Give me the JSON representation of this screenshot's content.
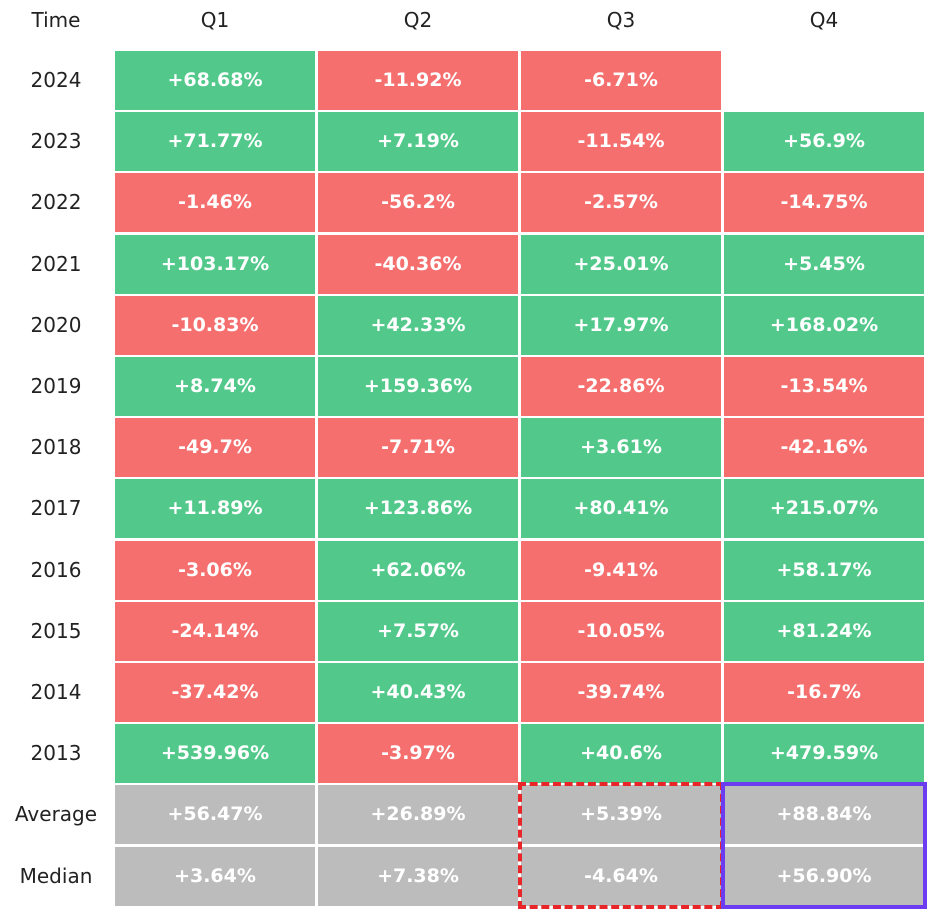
{
  "chart_data": {
    "type": "table",
    "corner_header": "Time",
    "columns": [
      "Q1",
      "Q2",
      "Q3",
      "Q4"
    ],
    "rows": [
      {
        "label": "2024",
        "values": [
          "+68.68%",
          "-11.92%",
          "-6.71%",
          ""
        ]
      },
      {
        "label": "2023",
        "values": [
          "+71.77%",
          "+7.19%",
          "-11.54%",
          "+56.9%"
        ]
      },
      {
        "label": "2022",
        "values": [
          "-1.46%",
          "-56.2%",
          "-2.57%",
          "-14.75%"
        ]
      },
      {
        "label": "2021",
        "values": [
          "+103.17%",
          "-40.36%",
          "+25.01%",
          "+5.45%"
        ]
      },
      {
        "label": "2020",
        "values": [
          "-10.83%",
          "+42.33%",
          "+17.97%",
          "+168.02%"
        ]
      },
      {
        "label": "2019",
        "values": [
          "+8.74%",
          "+159.36%",
          "-22.86%",
          "-13.54%"
        ]
      },
      {
        "label": "2018",
        "values": [
          "-49.7%",
          "-7.71%",
          "+3.61%",
          "-42.16%"
        ]
      },
      {
        "label": "2017",
        "values": [
          "+11.89%",
          "+123.86%",
          "+80.41%",
          "+215.07%"
        ]
      },
      {
        "label": "2016",
        "values": [
          "-3.06%",
          "+62.06%",
          "-9.41%",
          "+58.17%"
        ]
      },
      {
        "label": "2015",
        "values": [
          "-24.14%",
          "+7.57%",
          "-10.05%",
          "+81.24%"
        ]
      },
      {
        "label": "2014",
        "values": [
          "-37.42%",
          "+40.43%",
          "-39.74%",
          "-16.7%"
        ]
      },
      {
        "label": "2013",
        "values": [
          "+539.96%",
          "-3.97%",
          "+40.6%",
          "+479.59%"
        ]
      }
    ],
    "summary_rows": [
      {
        "label": "Average",
        "values": [
          "+56.47%",
          "+26.89%",
          "+5.39%",
          "+88.84%"
        ]
      },
      {
        "label": "Median",
        "values": [
          "+3.64%",
          "+7.38%",
          "-4.64%",
          "+56.90%"
        ]
      }
    ],
    "highlights": [
      {
        "column": "Q3",
        "rows": [
          "Average",
          "Median"
        ],
        "style": "dashed",
        "color": "#e8262a"
      },
      {
        "column": "Q4",
        "rows": [
          "Average",
          "Median"
        ],
        "style": "solid",
        "color": "#6b3cf0"
      }
    ],
    "colors": {
      "positive": "#52c98b",
      "negative": "#f56f6f",
      "summary": "#bcbcbc",
      "text_on_cell": "#ffffff",
      "label_text": "#222222"
    }
  }
}
